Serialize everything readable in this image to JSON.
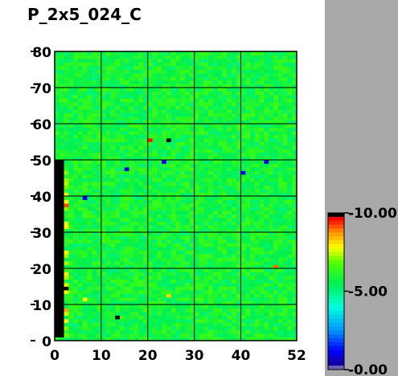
{
  "chart_data": {
    "type": "heatmap",
    "title": "P_2x5_024_C",
    "xlabel": "",
    "ylabel": "",
    "xlim": [
      0,
      52
    ],
    "ylim": [
      0,
      80
    ],
    "x_ticks": [
      "0",
      "10",
      "20",
      "30",
      "40",
      "52"
    ],
    "y_ticks": [
      "0",
      "10",
      "20",
      "30",
      "40",
      "50",
      "60",
      "70",
      "80"
    ],
    "grid": true,
    "colorbar": {
      "min": 0,
      "max": 10,
      "tick_labels": [
        "0.00",
        "5.00",
        "10.00"
      ],
      "placement": "right"
    },
    "base_value": 5.8,
    "left_strip": {
      "description_value": "black low-signal column at x 0-2, y 1-50 (value above scale)",
      "x_range": [
        0,
        2
      ],
      "y_range": [
        1,
        50
      ],
      "value": 10.5
    },
    "outliers": [
      {
        "x": 20,
        "y": 55,
        "value": 9.5
      },
      {
        "x": 24,
        "y": 55,
        "value": 10.5
      },
      {
        "x": 23,
        "y": 49,
        "value": 1.0
      },
      {
        "x": 15,
        "y": 47,
        "value": 0.8
      },
      {
        "x": 40,
        "y": 46,
        "value": 1.2
      },
      {
        "x": 45,
        "y": 49,
        "value": 1.0
      },
      {
        "x": 6,
        "y": 39,
        "value": 1.0
      },
      {
        "x": 47,
        "y": 20,
        "value": 9.0
      },
      {
        "x": 13,
        "y": 6,
        "value": 10.5
      },
      {
        "x": 24,
        "y": 12,
        "value": 8.2
      },
      {
        "x": 6,
        "y": 11,
        "value": 7.8
      },
      {
        "x": 2,
        "y": 8,
        "value": 8.6
      },
      {
        "x": 2,
        "y": 37,
        "value": 9.2
      },
      {
        "x": 2,
        "y": 14,
        "value": 10.5
      }
    ]
  }
}
